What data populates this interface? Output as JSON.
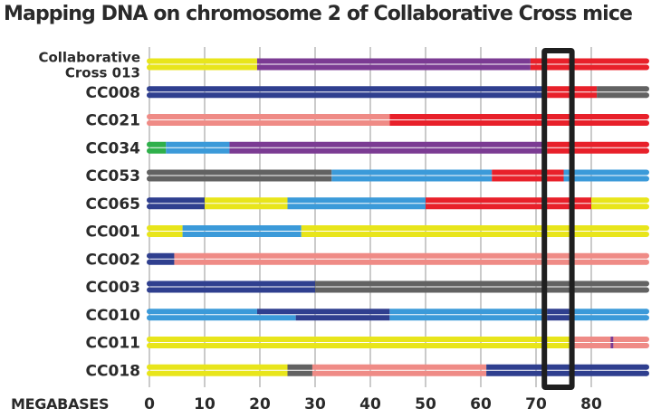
{
  "chart_data": {
    "type": "bar",
    "title": "Mapping DNA on chromosome 2 of Collaborative Cross mice",
    "xlabel": "MEGABASES",
    "xlim": [
      -2.5,
      90
    ],
    "xticks": [
      0,
      10,
      20,
      30,
      40,
      50,
      60,
      70,
      80
    ],
    "highlight_box": [
      72,
      76
    ],
    "colors": {
      "yellow": "#e8e51b",
      "purple": "#7b3b93",
      "red": "#e8202a",
      "navy": "#2f3f8f",
      "gray": "#626262",
      "pink": "#ef8b86",
      "green": "#2fb04b",
      "blue": "#3b9ad9"
    },
    "strains": [
      {
        "name_lines": [
          "Collaborative",
          "Cross 013"
        ],
        "top": [
          [
            0,
            19.5,
            "yellow"
          ],
          [
            19.5,
            69,
            "purple"
          ],
          [
            69,
            90,
            "red"
          ]
        ],
        "bottom": [
          [
            0,
            19.5,
            "yellow"
          ],
          [
            19.5,
            69,
            "purple"
          ],
          [
            69,
            90,
            "red"
          ]
        ]
      },
      {
        "name_lines": [
          "CC008"
        ],
        "top": [
          [
            0,
            72,
            "navy"
          ],
          [
            72,
            81,
            "red"
          ],
          [
            81,
            90,
            "gray"
          ]
        ],
        "bottom": [
          [
            0,
            72,
            "navy"
          ],
          [
            72,
            81,
            "red"
          ],
          [
            81,
            90,
            "gray"
          ]
        ]
      },
      {
        "name_lines": [
          "CC021"
        ],
        "top": [
          [
            0,
            43.5,
            "pink"
          ],
          [
            43.5,
            90,
            "red"
          ]
        ],
        "bottom": [
          [
            0,
            43.5,
            "pink"
          ],
          [
            43.5,
            90,
            "red"
          ]
        ]
      },
      {
        "name_lines": [
          "CC034"
        ],
        "top": [
          [
            0,
            3,
            "green"
          ],
          [
            3,
            14.5,
            "blue"
          ],
          [
            14.5,
            72,
            "purple"
          ],
          [
            72,
            90,
            "red"
          ]
        ],
        "bottom": [
          [
            0,
            3,
            "green"
          ],
          [
            3,
            14.5,
            "blue"
          ],
          [
            14.5,
            72,
            "purple"
          ],
          [
            72,
            90,
            "red"
          ]
        ]
      },
      {
        "name_lines": [
          "CC053"
        ],
        "top": [
          [
            0,
            33,
            "gray"
          ],
          [
            33,
            62,
            "blue"
          ],
          [
            62,
            75,
            "red"
          ],
          [
            75,
            90,
            "blue"
          ]
        ],
        "bottom": [
          [
            0,
            33,
            "gray"
          ],
          [
            33,
            62,
            "blue"
          ],
          [
            62,
            75,
            "red"
          ],
          [
            75,
            90,
            "blue"
          ]
        ]
      },
      {
        "name_lines": [
          "CC065"
        ],
        "top": [
          [
            0,
            10,
            "navy"
          ],
          [
            10,
            25,
            "yellow"
          ],
          [
            25,
            50,
            "blue"
          ],
          [
            50,
            80,
            "red"
          ],
          [
            80,
            90,
            "yellow"
          ]
        ],
        "bottom": [
          [
            0,
            10,
            "navy"
          ],
          [
            10,
            25,
            "yellow"
          ],
          [
            25,
            50,
            "blue"
          ],
          [
            50,
            80,
            "red"
          ],
          [
            80,
            90,
            "yellow"
          ]
        ]
      },
      {
        "name_lines": [
          "CC001"
        ],
        "top": [
          [
            0,
            6,
            "yellow"
          ],
          [
            6,
            27.5,
            "blue"
          ],
          [
            27.5,
            90,
            "yellow"
          ]
        ],
        "bottom": [
          [
            0,
            6,
            "yellow"
          ],
          [
            6,
            27.5,
            "blue"
          ],
          [
            27.5,
            90,
            "yellow"
          ]
        ]
      },
      {
        "name_lines": [
          "CC002"
        ],
        "top": [
          [
            0,
            4.5,
            "navy"
          ],
          [
            4.5,
            90,
            "pink"
          ]
        ],
        "bottom": [
          [
            0,
            4.5,
            "navy"
          ],
          [
            4.5,
            90,
            "pink"
          ]
        ]
      },
      {
        "name_lines": [
          "CC003"
        ],
        "top": [
          [
            0,
            30,
            "navy"
          ],
          [
            30,
            90,
            "gray"
          ]
        ],
        "bottom": [
          [
            0,
            30,
            "navy"
          ],
          [
            30,
            90,
            "gray"
          ]
        ]
      },
      {
        "name_lines": [
          "CC010"
        ],
        "top": [
          [
            0,
            19.5,
            "blue"
          ],
          [
            19.5,
            43.5,
            "navy"
          ],
          [
            43.5,
            72,
            "blue"
          ],
          [
            72,
            76,
            "navy"
          ],
          [
            76,
            90,
            "blue"
          ]
        ],
        "bottom": [
          [
            0,
            26.5,
            "blue"
          ],
          [
            26.5,
            43.5,
            "navy"
          ],
          [
            43.5,
            72,
            "blue"
          ],
          [
            72,
            76,
            "navy"
          ],
          [
            76,
            90,
            "blue"
          ]
        ]
      },
      {
        "name_lines": [
          "CC011"
        ],
        "top": [
          [
            0,
            76,
            "yellow"
          ],
          [
            76,
            83.5,
            "pink"
          ],
          [
            83.5,
            84,
            "purple"
          ],
          [
            84,
            90,
            "pink"
          ]
        ],
        "bottom": [
          [
            0,
            76,
            "yellow"
          ],
          [
            76,
            83.5,
            "pink"
          ],
          [
            83.5,
            84,
            "purple"
          ],
          [
            84,
            90,
            "pink"
          ]
        ]
      },
      {
        "name_lines": [
          "CC018"
        ],
        "top": [
          [
            0,
            25,
            "yellow"
          ],
          [
            25,
            29.5,
            "gray"
          ],
          [
            29.5,
            61,
            "pink"
          ],
          [
            61,
            90,
            "navy"
          ]
        ],
        "bottom": [
          [
            0,
            25,
            "yellow"
          ],
          [
            25,
            29.5,
            "gray"
          ],
          [
            29.5,
            61,
            "pink"
          ],
          [
            61,
            90,
            "navy"
          ]
        ]
      }
    ]
  }
}
